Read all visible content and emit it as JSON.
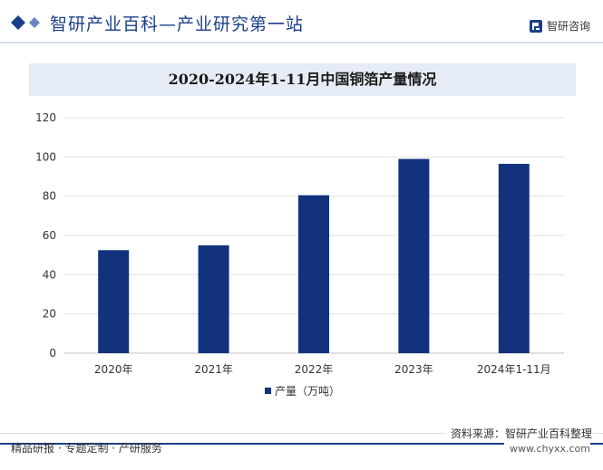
{
  "header": {
    "site_title": "智研产业百科—产业研究第一站",
    "brand_name": "智研咨询"
  },
  "chart_data": {
    "type": "bar",
    "title": "2020-2024年1-11月中国铜箔产量情况",
    "categories": [
      "2020年",
      "2021年",
      "2022年",
      "2023年",
      "2024年1-11月"
    ],
    "series": [
      {
        "name": "产量（万吨）",
        "values": [
          52.5,
          55,
          80.5,
          99,
          96.5
        ]
      }
    ],
    "ylim": [
      0,
      120
    ],
    "yticks": [
      0,
      20,
      40,
      60,
      80,
      100,
      120
    ],
    "xlabel": "",
    "ylabel": "",
    "grid": true,
    "legend": "bottom",
    "colors": {
      "bar": "#12327e",
      "grid": "#e1e1e1",
      "axis": "#bfbfbf",
      "tick_text": "#333333"
    }
  },
  "footer": {
    "source": "资料来源：智研产业百科整理",
    "website": "www.chyxx.com",
    "slogan": "精品研报 · 专题定制 · 产研服务"
  }
}
